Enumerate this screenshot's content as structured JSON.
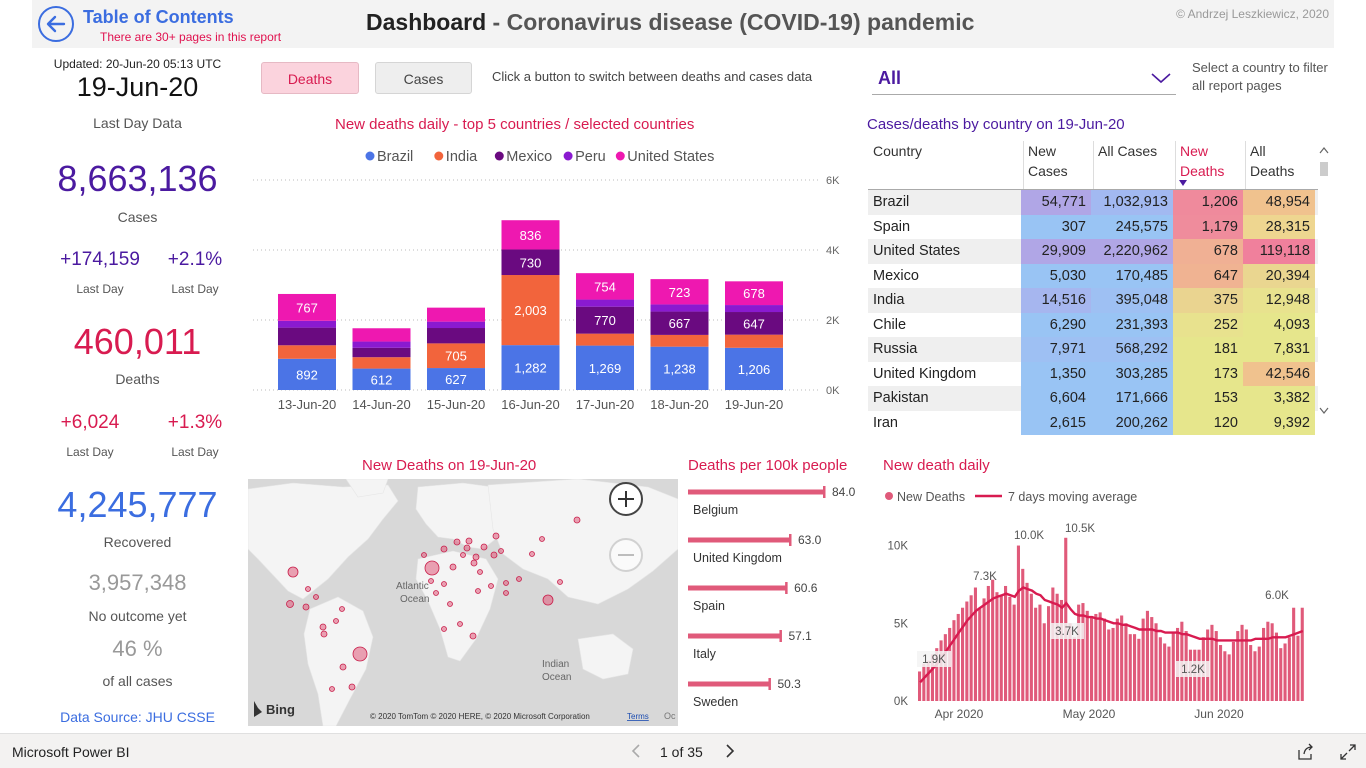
{
  "header": {
    "toc_title": "Table of Contents",
    "toc_sub": "There are 30+ pages in this report",
    "title_main": "Dashboard",
    "title_sub": " - Coronavirus disease (COVID-19) pandemic",
    "copyright": "© Andrzej Leszkiewicz, 2020"
  },
  "kpi": {
    "updated": "Updated: 20-Jun-20 05:13 UTC",
    "date": "19-Jun-20",
    "last_day_data": "Last Day Data",
    "cases": "8,663,136",
    "cases_label": "Cases",
    "cases_delta": "+174,159",
    "cases_pct": "+2.1%",
    "last_day": "Last Day",
    "deaths": "460,011",
    "deaths_label": "Deaths",
    "deaths_delta": "+6,024",
    "deaths_pct": "+1.3%",
    "recovered": "4,245,777",
    "recovered_label": "Recovered",
    "no_outcome": "3,957,348",
    "no_outcome_label": "No outcome yet",
    "pct_all": "46 %",
    "pct_all_label": "of all cases",
    "data_source": "Data Source: JHU CSSE"
  },
  "buttons": {
    "deaths": "Deaths",
    "cases": "Cases",
    "hint": "Click a button to switch between deaths and cases data"
  },
  "filter": {
    "selected": "All",
    "hint": "Select a country to filter all report pages"
  },
  "colors": {
    "accent_pink": "#d81b50",
    "accent_purple": "#4b1aa0",
    "accent_blue": "#3b6de0",
    "brazil": "#4b74e6",
    "india": "#f2643c",
    "mexico": "#6a0a80",
    "peru": "#8a1ad0",
    "united_states": "#ee18b0"
  },
  "chart_data": [
    {
      "type": "bar",
      "stacked": true,
      "title": "New deaths daily - top 5 countries / selected countries",
      "categories": [
        "13-Jun-20",
        "14-Jun-20",
        "15-Jun-20",
        "16-Jun-20",
        "17-Jun-20",
        "18-Jun-20",
        "19-Jun-20"
      ],
      "series": [
        {
          "name": "Brazil",
          "values": [
            892,
            612,
            627,
            1282,
            1269,
            1238,
            1206
          ]
        },
        {
          "name": "India",
          "values": [
            386,
            325,
            705,
            2003,
            341,
            336,
            375
          ]
        },
        {
          "name": "Mexico",
          "values": [
            504,
            269,
            439,
            730,
            770,
            667,
            647
          ]
        },
        {
          "name": "Peru",
          "values": [
            195,
            178,
            182,
            0,
            204,
            204,
            199
          ]
        },
        {
          "name": "United States",
          "values": [
            767,
            380,
            400,
            836,
            754,
            723,
            678
          ]
        }
      ],
      "data_labels": {
        "Brazil": [
          "892",
          "612",
          "627",
          "1,282",
          "1,269",
          "1,238",
          "1,206"
        ],
        "India": [
          "",
          "",
          "705",
          "2,003",
          "",
          "",
          ""
        ],
        "Mexico": [
          "",
          "",
          "",
          "730",
          "770",
          "667",
          "647"
        ],
        "United States": [
          "767",
          "",
          "",
          "836",
          "754",
          "723",
          "678"
        ]
      },
      "y_ticks": [
        "0K",
        "2K",
        "4K",
        "6K"
      ],
      "ylim": [
        0,
        6000
      ],
      "legend_position": "top"
    },
    {
      "type": "table",
      "title": "Cases/deaths by country on 19-Jun-20",
      "columns": [
        "Country",
        "New Cases",
        "All Cases",
        "New Deaths",
        "All Deaths"
      ],
      "sorted_column": "New Deaths",
      "rows": [
        [
          "Brazil",
          "54,771",
          "1,032,913",
          "1,206",
          "48,954"
        ],
        [
          "Spain",
          "307",
          "245,575",
          "1,179",
          "28,315"
        ],
        [
          "United States",
          "29,909",
          "2,220,962",
          "678",
          "119,118"
        ],
        [
          "Mexico",
          "5,030",
          "170,485",
          "647",
          "20,394"
        ],
        [
          "India",
          "14,516",
          "395,048",
          "375",
          "12,948"
        ],
        [
          "Chile",
          "6,290",
          "231,393",
          "252",
          "4,093"
        ],
        [
          "Russia",
          "7,971",
          "568,292",
          "181",
          "7,831"
        ],
        [
          "United Kingdom",
          "1,350",
          "303,285",
          "173",
          "42,546"
        ],
        [
          "Pakistan",
          "6,604",
          "171,666",
          "153",
          "3,382"
        ],
        [
          "Iran",
          "2,615",
          "200,262",
          "120",
          "9,392"
        ]
      ],
      "cell_colors": {
        "new_cases": [
          "#b0a6e6",
          "#99c4f4",
          "#b0a6e6",
          "#99c4f4",
          "#a6b6ef",
          "#99c4f4",
          "#9ec0f3",
          "#99c4f4",
          "#99c4f4",
          "#99c4f4"
        ],
        "all_cases": [
          "#a2b9f1",
          "#99c4f4",
          "#b0a6e6",
          "#99c4f4",
          "#9ec0f3",
          "#99c4f4",
          "#9ec0f3",
          "#99c4f4",
          "#99c4f4",
          "#99c4f4"
        ],
        "new_deaths": [
          "#ef8a9c",
          "#ef8c9c",
          "#f0b094",
          "#f0b392",
          "#ead490",
          "#e8e28e",
          "#e6e68c",
          "#e6e68c",
          "#e6e68c",
          "#e6e68c"
        ],
        "all_deaths": [
          "#f0c28e",
          "#eed690",
          "#f0809c",
          "#ead690",
          "#e8e28e",
          "#e6e68c",
          "#e6e68c",
          "#f0c28e",
          "#e6e68c",
          "#e6e68c"
        ]
      }
    },
    {
      "type": "bar",
      "orientation": "horizontal",
      "title": "Deaths per 100k people",
      "categories": [
        "Belgium",
        "United Kingdom",
        "Spain",
        "Italy",
        "Sweden"
      ],
      "values": [
        84.0,
        63.0,
        60.6,
        57.1,
        50.3
      ],
      "value_labels": [
        "84.0",
        "63.0",
        "60.6",
        "57.1",
        "50.3"
      ],
      "xlim": [
        0,
        84
      ]
    },
    {
      "type": "bar",
      "title": "New death daily",
      "series": [
        {
          "name": "New Deaths",
          "type": "bar"
        },
        {
          "name": "7 days moving average",
          "type": "line"
        }
      ],
      "x_ticks": [
        "Apr 2020",
        "May 2020",
        "Jun 2020"
      ],
      "y_ticks": [
        "0K",
        "5K",
        "10K"
      ],
      "ylim": [
        0,
        11000
      ],
      "annotations": [
        "1.9K",
        "7.3K",
        "10.0K",
        "10.5K",
        "3.7K",
        "1.2K",
        "6.0K"
      ],
      "bar_values": [
        1900,
        2400,
        2600,
        3000,
        3400,
        3900,
        4300,
        4700,
        5200,
        5600,
        6000,
        6400,
        6800,
        7300,
        6000,
        6600,
        7400,
        7800,
        7000,
        6800,
        7400,
        6700,
        6200,
        10000,
        8500,
        7600,
        6900,
        6000,
        6200,
        5000,
        6100,
        7300,
        6900,
        6500,
        10500,
        5000,
        4100,
        6200,
        6300,
        5800,
        5400,
        5600,
        5700,
        5300,
        4600,
        4700,
        5300,
        5500,
        5000,
        4300,
        4300,
        4000,
        5300,
        5800,
        5400,
        5000,
        4100,
        3700,
        3500,
        4400,
        4700,
        5100,
        4500,
        3300,
        3300,
        3300,
        4100,
        4600,
        4900,
        4500,
        3600,
        3200,
        3000,
        3800,
        4500,
        4900,
        4600,
        3600,
        3200,
        3500,
        4700,
        5100,
        5000,
        4400,
        3400,
        3700,
        4100,
        6000,
        4200,
        6000
      ],
      "moving_average": [
        1200,
        1500,
        1800,
        2100,
        2400,
        2800,
        3200,
        3600,
        4000,
        4400,
        4800,
        5200,
        5500,
        5800,
        6000,
        6200,
        6400,
        6600,
        6700,
        6800,
        6900,
        6800,
        6700,
        7100,
        7300,
        7200,
        7100,
        6900,
        6800,
        6500,
        6400,
        6300,
        6200,
        6000,
        6300,
        5900,
        5600,
        5500,
        5500,
        5400,
        5400,
        5300,
        5300,
        5200,
        5100,
        5000,
        5000,
        4900,
        4900,
        4800,
        4700,
        4600,
        4600,
        4600,
        4600,
        4500,
        4500,
        4400,
        4400,
        4400,
        4400,
        4300,
        4300,
        4200,
        4100,
        4000,
        4000,
        4000,
        4000,
        3900,
        3900,
        3900,
        3900,
        3900,
        3900,
        3900,
        3900,
        3900,
        4000,
        4000,
        4000,
        4000,
        4100,
        4100,
        4100,
        4100,
        4200,
        4300,
        4400,
        4500
      ]
    }
  ],
  "map": {
    "title": "New Deaths on 19-Jun-20",
    "label_atlantic": "Atlantic Ocean",
    "label_atlantic_1": "Atlantic",
    "label_atlantic_2": "Ocean",
    "label_indian_1": "Indian",
    "label_indian_2": "Ocean",
    "brand": "Bing",
    "attribution": "© 2020 TomTom © 2020 HERE, © 2020 Microsoft Corporation",
    "terms": "Terms",
    "extra": "Oc"
  },
  "footer": {
    "brand": "Microsoft Power BI",
    "page": "1 of 35"
  }
}
